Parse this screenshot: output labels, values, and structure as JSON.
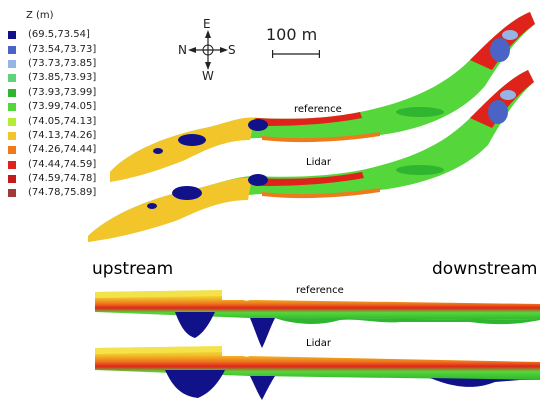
{
  "legend": {
    "title": "Z (m)",
    "items": [
      {
        "label": "(69.5,73.54]",
        "color": "#11118a"
      },
      {
        "label": "(73.54,73.73]",
        "color": "#4a63c4"
      },
      {
        "label": "(73.73,73.85]",
        "color": "#96b4e6"
      },
      {
        "label": "(73.85,73.93]",
        "color": "#5fd27a"
      },
      {
        "label": "(73.93,73.99]",
        "color": "#2fb52f"
      },
      {
        "label": "(73.99,74.05]",
        "color": "#55d63a"
      },
      {
        "label": "(74.05,74.13]",
        "color": "#b5ec36"
      },
      {
        "label": "(74.13,74.26]",
        "color": "#f2c62b"
      },
      {
        "label": "(74.26,74.44]",
        "color": "#ee7a1c"
      },
      {
        "label": "(74.44,74.59]",
        "color": "#e0231a"
      },
      {
        "label": "(74.59,74.78]",
        "color": "#c41a1a"
      },
      {
        "label": "(74.78,75.89]",
        "color": "#9e3a3a"
      }
    ]
  },
  "compass": {
    "north": "N",
    "east": "E",
    "south": "S",
    "west": "W"
  },
  "scale": {
    "label": "100 m"
  },
  "plan_labels": {
    "top": "reference",
    "bottom": "Lidar"
  },
  "profile": {
    "upstream": "upstream",
    "downstream": "downstream",
    "top_label": "reference",
    "bottom_label": "Lidar"
  }
}
